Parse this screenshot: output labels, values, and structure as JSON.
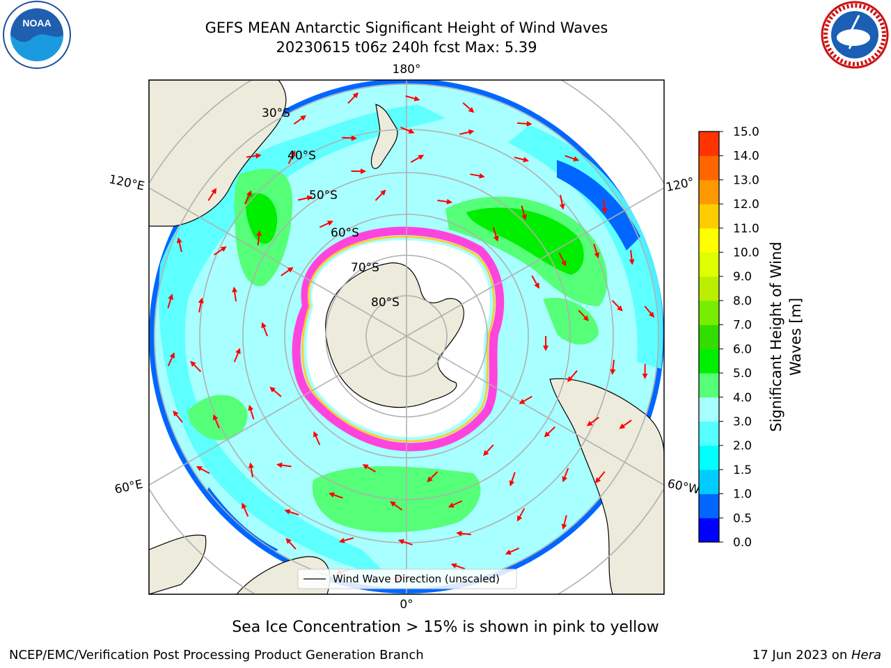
{
  "title": {
    "line1": "GEFS MEAN Antarctic Significant Height of Wind Waves",
    "line2": "20230615 t06z 240h fcst   Max: 5.39"
  },
  "logos": {
    "left": "noaa-logo",
    "left_text": "NOAA",
    "right": "nws-logo",
    "right_text": "NATIONAL WEATHER SERVICE"
  },
  "map": {
    "projection": "south-polar-stereographic",
    "longitude_labels": {
      "top": "180°",
      "bottom": "0°",
      "upper_left": "120°E",
      "lower_left": "60°E",
      "upper_right": "120°",
      "lower_right": "60°W"
    },
    "latitude_labels": [
      "30°S",
      "40°S",
      "50°S",
      "60°S",
      "70°S",
      "80°S"
    ],
    "legend_text": "Wind Wave Direction (unscaled)",
    "colors": {
      "land": "#ecebdc",
      "sea_ice": "#ffffff",
      "ice_edge_pink": "#ff44dd",
      "ice_edge_yellow": "#ffcc33",
      "arrow": "#ff0000",
      "grid": "#b0b0b0"
    }
  },
  "colorbar": {
    "title": "Significant Height of Wind Waves [m]",
    "title_line1": "Significant Height of Wind",
    "title_line2": "Waves [m]",
    "ticks": [
      "0.0",
      "0.5",
      "1.0",
      "1.5",
      "2.0",
      "3.0",
      "4.0",
      "5.0",
      "6.0",
      "7.0",
      "8.0",
      "9.0",
      "10.0",
      "11.0",
      "12.0",
      "13.0",
      "14.0",
      "15.0"
    ],
    "colors": [
      "#0000ff",
      "#0066ff",
      "#00ccff",
      "#00ffff",
      "#55ffff",
      "#a8ffff",
      "#55ff77",
      "#00ee00",
      "#33dd00",
      "#77ee00",
      "#bbee00",
      "#ddff00",
      "#ffff00",
      "#ffcc00",
      "#ff9900",
      "#ff6600",
      "#ff3300",
      "#ff0000"
    ]
  },
  "ice_note": "Sea Ice Concentration > 15% is shown in pink to yellow",
  "footer": {
    "left": "NCEP/EMC/Verification Post Processing Product Generation Branch",
    "right_prefix": "17 Jun 2023 on ",
    "right_machine": "Hera"
  }
}
